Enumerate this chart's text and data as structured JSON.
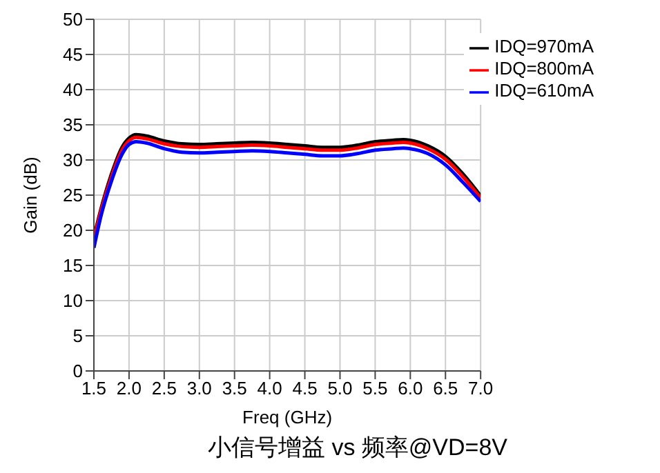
{
  "chart_data": {
    "type": "line",
    "xlabel": "Freq (GHz)",
    "ylabel": "Gain (dB)",
    "annotations": [
      "小信号增益 vs 频率@VD=8V"
    ],
    "x": [
      1.5,
      1.6,
      1.75,
      1.9,
      2.0,
      2.1,
      2.25,
      2.5,
      2.75,
      3.0,
      3.25,
      3.5,
      3.75,
      4.0,
      4.25,
      4.5,
      4.75,
      5.0,
      5.25,
      5.5,
      5.75,
      5.9,
      6.0,
      6.25,
      6.5,
      6.75,
      7.0
    ],
    "series": [
      {
        "name": "IDQ=970mA",
        "color": "#000000",
        "values": [
          19,
          23,
          28,
          31.8,
          33.1,
          33.6,
          33.4,
          32.7,
          32.3,
          32.2,
          32.3,
          32.4,
          32.5,
          32.4,
          32.2,
          32,
          31.8,
          31.8,
          32.1,
          32.6,
          32.8,
          32.9,
          32.8,
          32,
          30.5,
          28,
          24.9
        ]
      },
      {
        "name": "IDQ=800mA",
        "color": "#ff0000",
        "values": [
          18.6,
          22.7,
          27.6,
          31.4,
          32.7,
          33.2,
          33,
          32.3,
          31.9,
          31.8,
          31.9,
          32,
          32.1,
          32,
          31.8,
          31.6,
          31.4,
          31.4,
          31.7,
          32.2,
          32.4,
          32.5,
          32.4,
          31.6,
          30.1,
          27.6,
          24.6
        ]
      },
      {
        "name": "IDQ=610mA",
        "color": "#0000ff",
        "values": [
          17.5,
          22,
          27,
          30.8,
          32.2,
          32.6,
          32.4,
          31.6,
          31.1,
          31,
          31.1,
          31.2,
          31.3,
          31.2,
          31,
          30.8,
          30.6,
          30.6,
          30.9,
          31.4,
          31.6,
          31.7,
          31.6,
          30.9,
          29.3,
          26.8,
          24.1
        ]
      }
    ],
    "xlim": [
      1.5,
      7.0
    ],
    "xticks": [
      {
        "value": 1.5,
        "label": "1.5"
      },
      {
        "value": 2,
        "label": "2.0"
      },
      {
        "value": 2.5,
        "label": "2.5"
      },
      {
        "value": 3,
        "label": "3.0"
      },
      {
        "value": 3.5,
        "label": "3.5"
      },
      {
        "value": 4,
        "label": "4.0"
      },
      {
        "value": 4.5,
        "label": "4.5"
      },
      {
        "value": 5,
        "label": "5.0"
      },
      {
        "value": 5.5,
        "label": "5.5"
      },
      {
        "value": 6,
        "label": "6.0"
      },
      {
        "value": 6.5,
        "label": "6.5"
      },
      {
        "value": 7,
        "label": "7.0"
      }
    ],
    "ylim": [
      0,
      50
    ],
    "yticks": [
      0,
      5,
      10,
      15,
      20,
      25,
      30,
      35,
      40,
      45,
      50
    ],
    "grid": true,
    "legend": "top right",
    "marker": "none",
    "line_style": "solid"
  }
}
